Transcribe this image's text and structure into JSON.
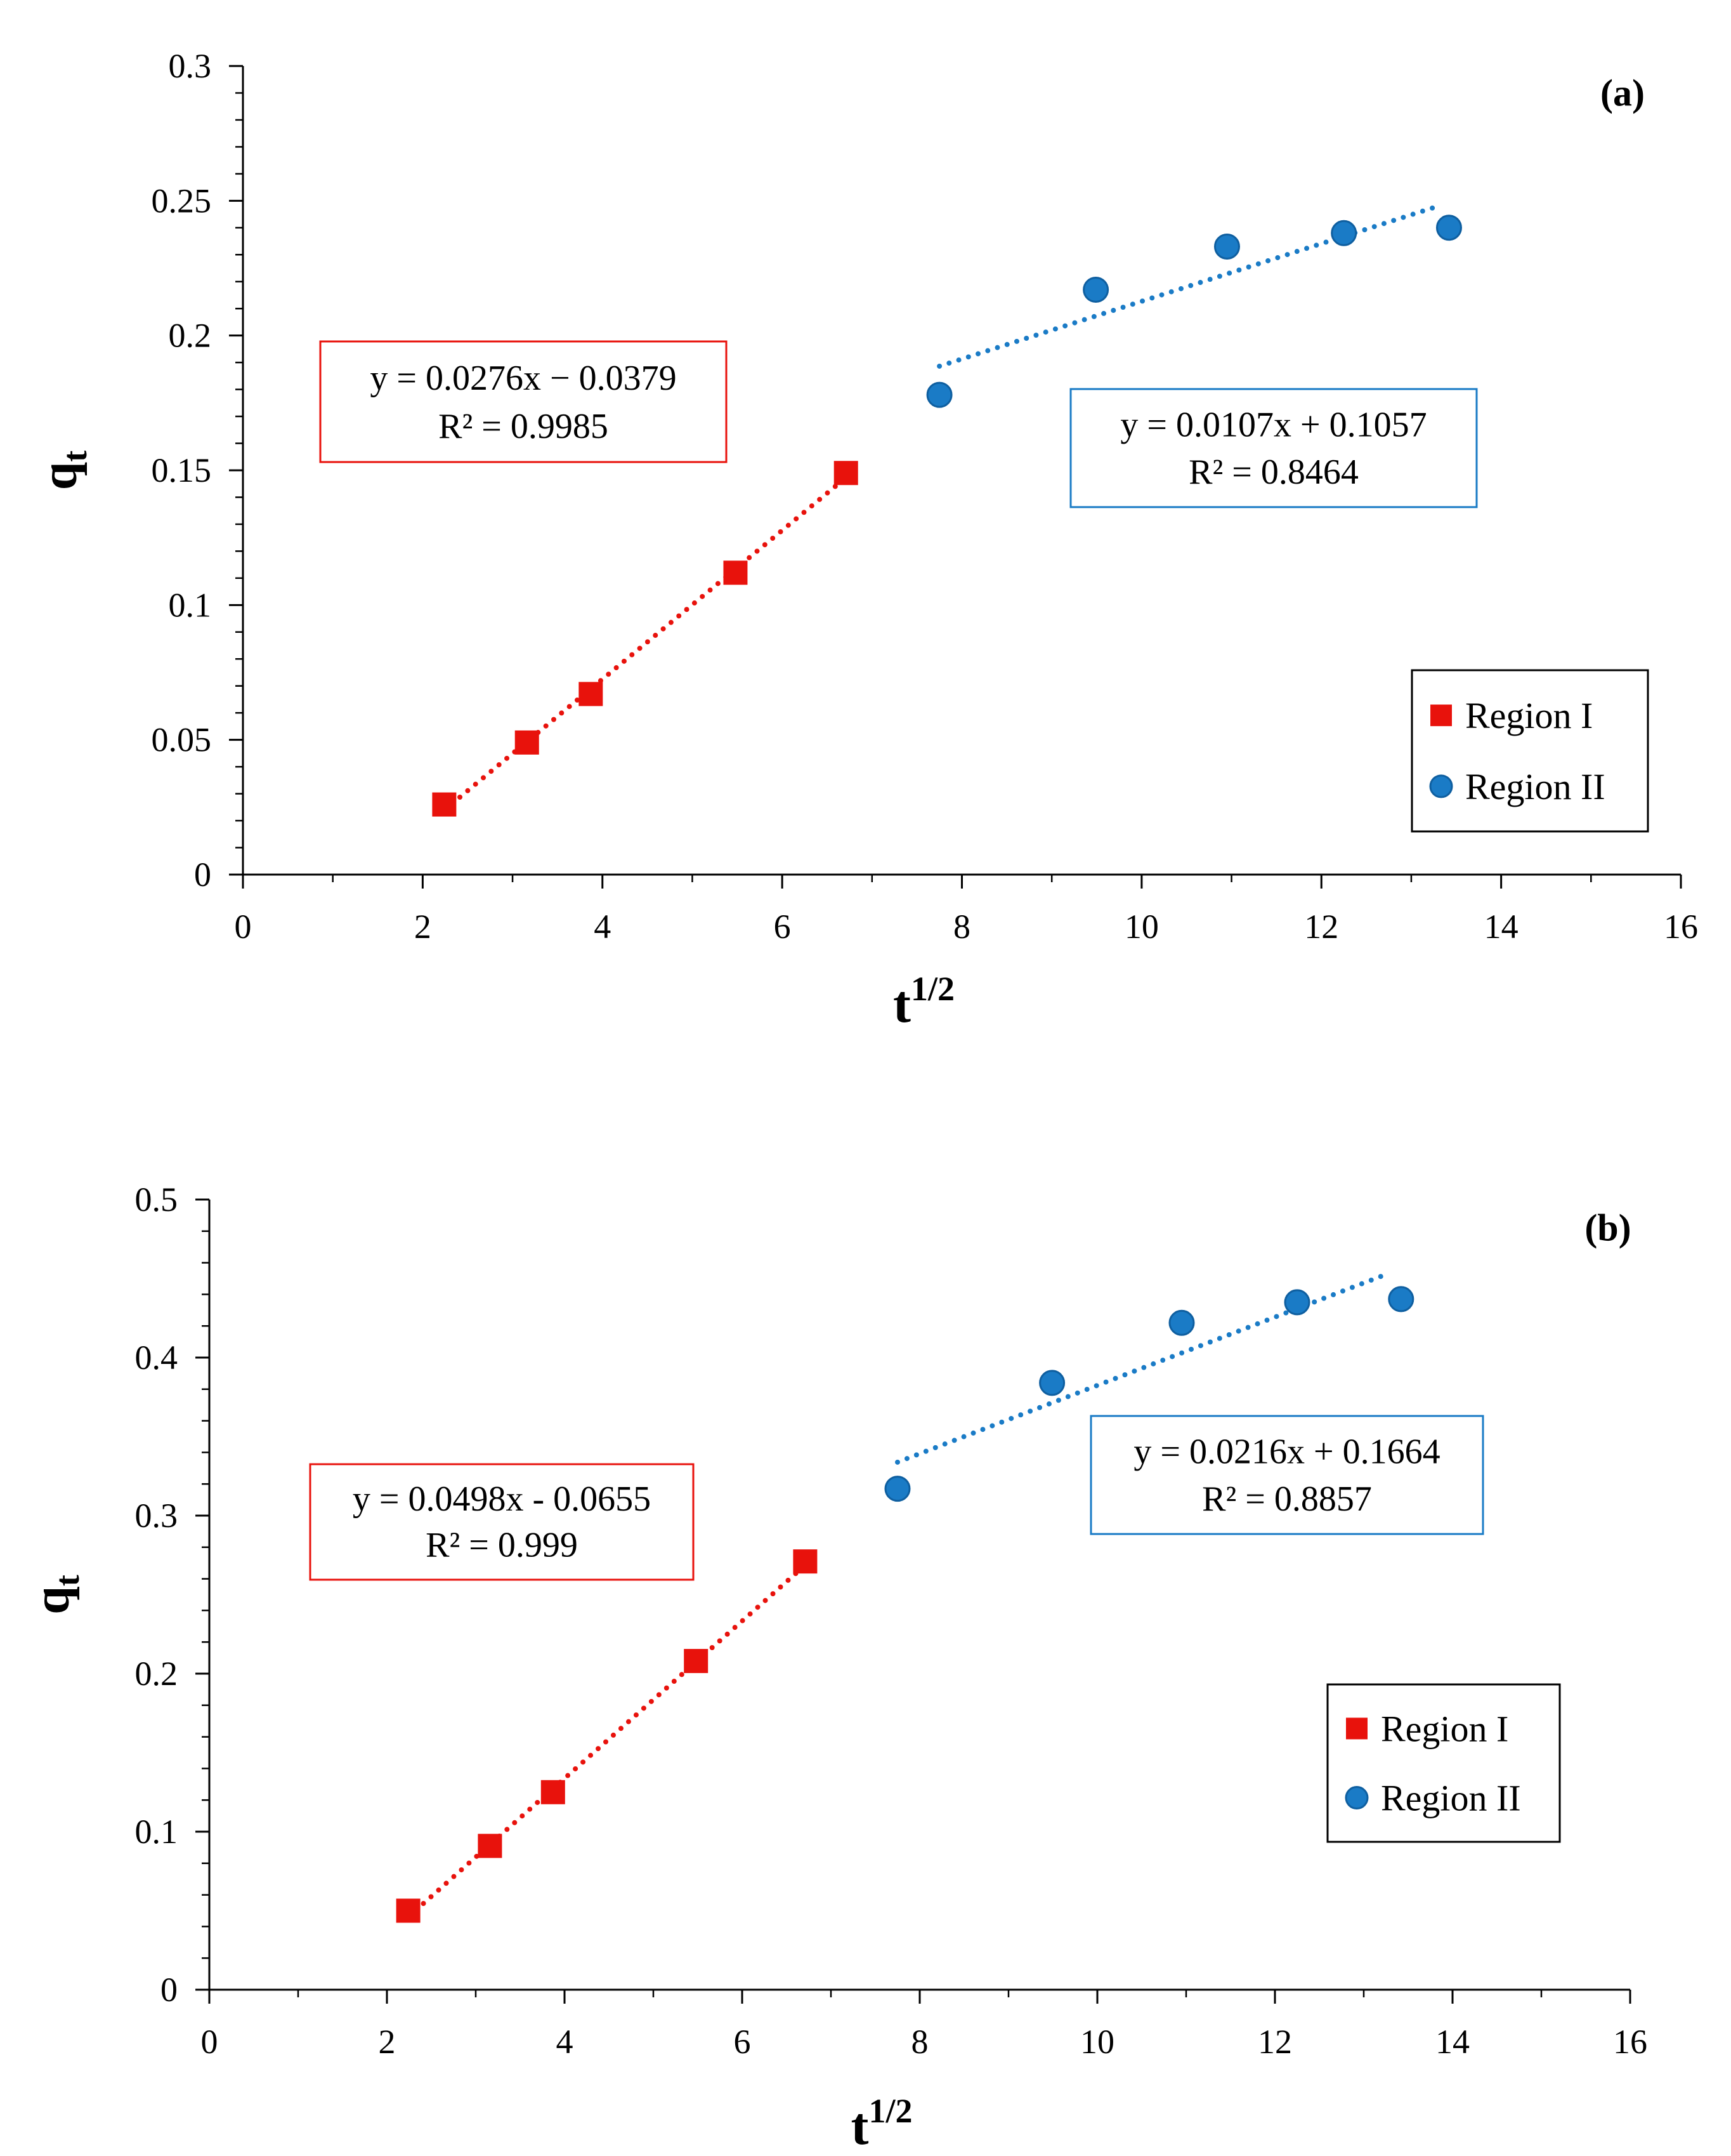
{
  "chart_data": [
    {
      "type": "scatter",
      "panel_label": "(a)",
      "xlabel_base": "t",
      "xlabel_sup": "1/2",
      "ylabel_base": "q",
      "ylabel_sub": "t",
      "xlim": [
        0,
        16
      ],
      "ylim": [
        0,
        0.3
      ],
      "xticks": [
        0,
        2,
        4,
        6,
        8,
        10,
        12,
        14,
        16
      ],
      "yticks": [
        0,
        0.05,
        0.1,
        0.15,
        0.2,
        0.25,
        0.3
      ],
      "ytick_labels": [
        "0",
        "0.05",
        "0.1",
        "0.15",
        "0.2",
        "0.25",
        "0.3"
      ],
      "series": [
        {
          "name": "Region I",
          "marker": "square",
          "color": "#e8120c",
          "x": [
            2.24,
            3.16,
            3.87,
            5.48,
            6.71
          ],
          "y": [
            0.026,
            0.049,
            0.067,
            0.112,
            0.149
          ],
          "trend": {
            "slope": 0.0276,
            "intercept": -0.0379,
            "x_range": [
              2.24,
              6.71
            ]
          },
          "equation": "y = 0.0276x  − 0.0379",
          "r2": "R² = 0.9985"
        },
        {
          "name": "Region II",
          "marker": "circle",
          "color": "#1a7bc6",
          "x": [
            7.75,
            9.49,
            10.95,
            12.25,
            13.42
          ],
          "y": [
            0.178,
            0.217,
            0.233,
            0.238,
            0.24
          ],
          "trend": {
            "slope": 0.0107,
            "intercept": 0.1057,
            "x_range": [
              7.75,
              13.3
            ]
          },
          "equation": "y = 0.0107x  + 0.1057",
          "r2": "R² = 0.8464"
        }
      ],
      "legend": [
        "Region I",
        "Region II"
      ]
    },
    {
      "type": "scatter",
      "panel_label": "(b)",
      "xlabel_base": "t",
      "xlabel_sup": "1/2",
      "ylabel_base": "q",
      "ylabel_sub": "t",
      "xlim": [
        0,
        16
      ],
      "ylim": [
        0,
        0.5
      ],
      "xticks": [
        0,
        2,
        4,
        6,
        8,
        10,
        12,
        14,
        16
      ],
      "yticks": [
        0,
        0.1,
        0.2,
        0.3,
        0.4,
        0.5
      ],
      "ytick_labels": [
        "0",
        "0.1",
        "0.2",
        "0.3",
        "0.4",
        "0.5"
      ],
      "series": [
        {
          "name": "Region I",
          "marker": "square",
          "color": "#e8120c",
          "x": [
            2.24,
            3.16,
            3.87,
            5.48,
            6.71
          ],
          "y": [
            0.05,
            0.091,
            0.125,
            0.208,
            0.271
          ],
          "trend": {
            "slope": 0.0498,
            "intercept": -0.0655,
            "x_range": [
              2.24,
              6.71
            ]
          },
          "equation": "y = 0.0498x  - 0.0655",
          "r2": "R² = 0.999"
        },
        {
          "name": "Region II",
          "marker": "circle",
          "color": "#1a7bc6",
          "x": [
            7.75,
            9.49,
            10.95,
            12.25,
            13.42
          ],
          "y": [
            0.317,
            0.384,
            0.422,
            0.435,
            0.437
          ],
          "trend": {
            "slope": 0.0216,
            "intercept": 0.1664,
            "x_range": [
              7.75,
              13.2
            ]
          },
          "equation": "y = 0.0216x  + 0.1664",
          "r2": "R² = 0.8857"
        }
      ],
      "legend": [
        "Region I",
        "Region II"
      ]
    }
  ]
}
